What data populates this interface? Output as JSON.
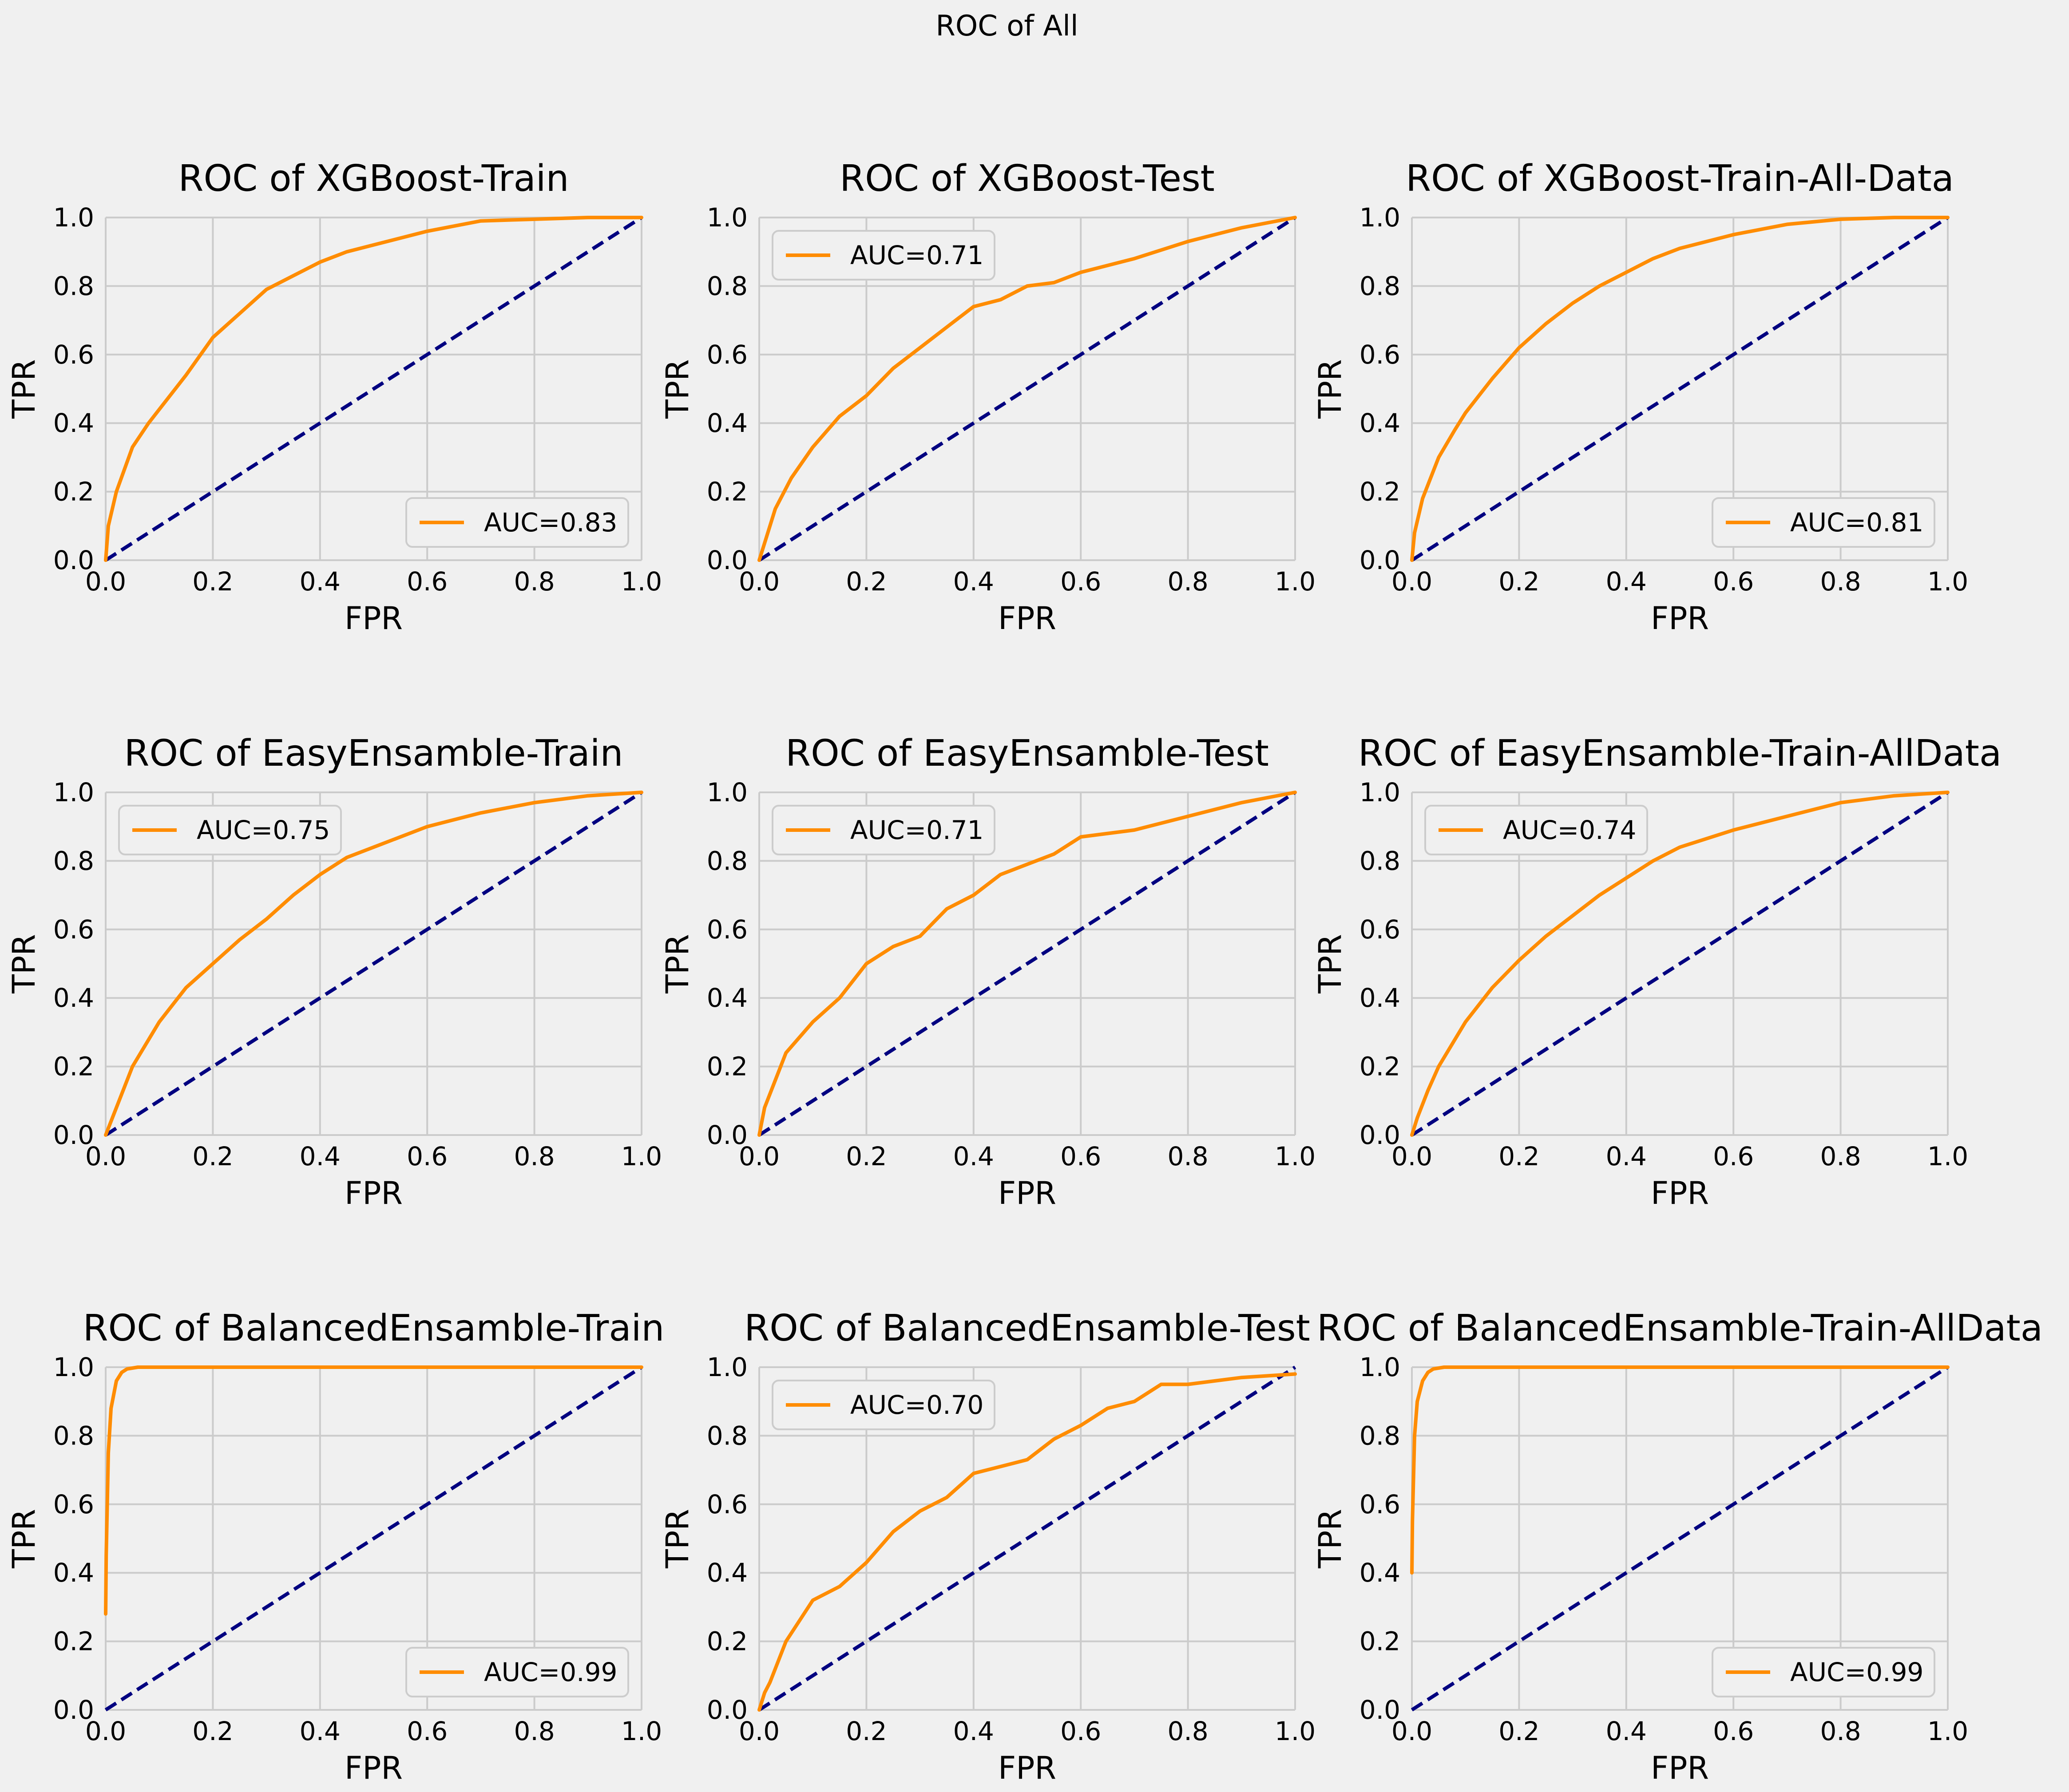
{
  "figure": {
    "suptitle": "ROC of All",
    "colors": {
      "background": "#f0f0f0",
      "grid": "#cbcbcb",
      "roc_line": "#ff8c00",
      "diagonal": "#000080",
      "legend_bg": "#f0f0f0",
      "legend_edge": "#cccccc"
    }
  },
  "chart_data": [
    {
      "type": "line",
      "title": "ROC of XGBoost-Train",
      "xlabel": "FPR",
      "ylabel": "TPR",
      "xlim": [
        0,
        1
      ],
      "ylim": [
        0,
        1
      ],
      "grid": true,
      "legend": "lower-right",
      "xticks": [
        "0.0",
        "0.2",
        "0.4",
        "0.6",
        "0.8",
        "1.0"
      ],
      "yticks": [
        "0.0",
        "0.2",
        "0.4",
        "0.6",
        "0.8",
        "1.0"
      ],
      "series": [
        {
          "name": "AUC=0.83",
          "x": [
            0,
            0.005,
            0.02,
            0.05,
            0.08,
            0.1,
            0.15,
            0.2,
            0.25,
            0.3,
            0.35,
            0.4,
            0.45,
            0.5,
            0.6,
            0.7,
            0.8,
            0.9,
            1.0
          ],
          "y": [
            0,
            0.1,
            0.2,
            0.33,
            0.4,
            0.44,
            0.54,
            0.65,
            0.72,
            0.79,
            0.83,
            0.87,
            0.9,
            0.92,
            0.96,
            0.99,
            0.995,
            1.0,
            1.0
          ]
        }
      ]
    },
    {
      "type": "line",
      "title": "ROC of XGBoost-Test",
      "xlabel": "FPR",
      "ylabel": "TPR",
      "xlim": [
        0,
        1
      ],
      "ylim": [
        0,
        1
      ],
      "grid": true,
      "legend": "upper-left",
      "xticks": [
        "0.0",
        "0.2",
        "0.4",
        "0.6",
        "0.8",
        "1.0"
      ],
      "yticks": [
        "0.0",
        "0.2",
        "0.4",
        "0.6",
        "0.8",
        "1.0"
      ],
      "series": [
        {
          "name": "AUC=0.71",
          "x": [
            0,
            0.01,
            0.03,
            0.06,
            0.1,
            0.15,
            0.2,
            0.25,
            0.3,
            0.35,
            0.4,
            0.45,
            0.5,
            0.55,
            0.6,
            0.7,
            0.8,
            0.9,
            1.0
          ],
          "y": [
            0,
            0.05,
            0.15,
            0.24,
            0.33,
            0.42,
            0.48,
            0.56,
            0.62,
            0.68,
            0.74,
            0.76,
            0.8,
            0.81,
            0.84,
            0.88,
            0.93,
            0.97,
            1.0
          ]
        }
      ]
    },
    {
      "type": "line",
      "title": "ROC of XGBoost-Train-All-Data",
      "xlabel": "FPR",
      "ylabel": "TPR",
      "xlim": [
        0,
        1
      ],
      "ylim": [
        0,
        1
      ],
      "grid": true,
      "legend": "lower-right",
      "xticks": [
        "0.0",
        "0.2",
        "0.4",
        "0.6",
        "0.8",
        "1.0"
      ],
      "yticks": [
        "0.0",
        "0.2",
        "0.4",
        "0.6",
        "0.8",
        "1.0"
      ],
      "series": [
        {
          "name": "AUC=0.81",
          "x": [
            0,
            0.005,
            0.02,
            0.05,
            0.08,
            0.1,
            0.15,
            0.2,
            0.25,
            0.3,
            0.35,
            0.4,
            0.45,
            0.5,
            0.6,
            0.7,
            0.8,
            0.9,
            1.0
          ],
          "y": [
            0,
            0.08,
            0.18,
            0.3,
            0.38,
            0.43,
            0.53,
            0.62,
            0.69,
            0.75,
            0.8,
            0.84,
            0.88,
            0.91,
            0.95,
            0.98,
            0.995,
            1.0,
            1.0
          ]
        }
      ]
    },
    {
      "type": "line",
      "title": "ROC of EasyEnsamble-Train",
      "xlabel": "FPR",
      "ylabel": "TPR",
      "xlim": [
        0,
        1
      ],
      "ylim": [
        0,
        1
      ],
      "grid": true,
      "legend": "upper-left",
      "xticks": [
        "0.0",
        "0.2",
        "0.4",
        "0.6",
        "0.8",
        "1.0"
      ],
      "yticks": [
        "0.0",
        "0.2",
        "0.4",
        "0.6",
        "0.8",
        "1.0"
      ],
      "series": [
        {
          "name": "AUC=0.75",
          "x": [
            0,
            0.01,
            0.03,
            0.05,
            0.1,
            0.15,
            0.2,
            0.25,
            0.3,
            0.35,
            0.4,
            0.45,
            0.5,
            0.6,
            0.7,
            0.8,
            0.9,
            1.0
          ],
          "y": [
            0,
            0.04,
            0.12,
            0.2,
            0.33,
            0.43,
            0.5,
            0.57,
            0.63,
            0.7,
            0.76,
            0.81,
            0.84,
            0.9,
            0.94,
            0.97,
            0.99,
            1.0
          ]
        }
      ]
    },
    {
      "type": "line",
      "title": "ROC of EasyEnsamble-Test",
      "xlabel": "FPR",
      "ylabel": "TPR",
      "xlim": [
        0,
        1
      ],
      "ylim": [
        0,
        1
      ],
      "grid": true,
      "legend": "upper-left",
      "xticks": [
        "0.0",
        "0.2",
        "0.4",
        "0.6",
        "0.8",
        "1.0"
      ],
      "yticks": [
        "0.0",
        "0.2",
        "0.4",
        "0.6",
        "0.8",
        "1.0"
      ],
      "series": [
        {
          "name": "AUC=0.71",
          "x": [
            0,
            0.01,
            0.03,
            0.05,
            0.1,
            0.15,
            0.2,
            0.25,
            0.3,
            0.35,
            0.4,
            0.45,
            0.5,
            0.55,
            0.6,
            0.7,
            0.8,
            0.9,
            1.0
          ],
          "y": [
            0,
            0.08,
            0.16,
            0.24,
            0.33,
            0.4,
            0.5,
            0.55,
            0.58,
            0.66,
            0.7,
            0.76,
            0.79,
            0.82,
            0.87,
            0.89,
            0.93,
            0.97,
            1.0
          ]
        }
      ]
    },
    {
      "type": "line",
      "title": "ROC of EasyEnsamble-Train-AllData",
      "xlabel": "FPR",
      "ylabel": "TPR",
      "xlim": [
        0,
        1
      ],
      "ylim": [
        0,
        1
      ],
      "grid": true,
      "legend": "upper-left",
      "xticks": [
        "0.0",
        "0.2",
        "0.4",
        "0.6",
        "0.8",
        "1.0"
      ],
      "yticks": [
        "0.0",
        "0.2",
        "0.4",
        "0.6",
        "0.8",
        "1.0"
      ],
      "series": [
        {
          "name": "AUC=0.74",
          "x": [
            0,
            0.01,
            0.03,
            0.05,
            0.1,
            0.15,
            0.2,
            0.25,
            0.3,
            0.35,
            0.4,
            0.45,
            0.5,
            0.6,
            0.7,
            0.8,
            0.9,
            1.0
          ],
          "y": [
            0,
            0.05,
            0.13,
            0.2,
            0.33,
            0.43,
            0.51,
            0.58,
            0.64,
            0.7,
            0.75,
            0.8,
            0.84,
            0.89,
            0.93,
            0.97,
            0.99,
            1.0
          ]
        }
      ]
    },
    {
      "type": "line",
      "title": "ROC of BalancedEnsamble-Train",
      "xlabel": "FPR",
      "ylabel": "TPR",
      "xlim": [
        0,
        1
      ],
      "ylim": [
        0,
        1
      ],
      "grid": true,
      "legend": "lower-right",
      "xticks": [
        "0.0",
        "0.2",
        "0.4",
        "0.6",
        "0.8",
        "1.0"
      ],
      "yticks": [
        "0.0",
        "0.2",
        "0.4",
        "0.6",
        "0.8",
        "1.0"
      ],
      "series": [
        {
          "name": "AUC=0.99",
          "x": [
            0,
            0.001,
            0.005,
            0.01,
            0.02,
            0.03,
            0.04,
            0.06,
            0.1,
            1.0
          ],
          "y": [
            0.28,
            0.45,
            0.75,
            0.88,
            0.96,
            0.985,
            0.995,
            1.0,
            1.0,
            1.0
          ]
        }
      ]
    },
    {
      "type": "line",
      "title": "ROC of BalancedEnsamble-Test",
      "xlabel": "FPR",
      "ylabel": "TPR",
      "xlim": [
        0,
        1
      ],
      "ylim": [
        0,
        1
      ],
      "grid": true,
      "legend": "upper-left",
      "xticks": [
        "0.0",
        "0.2",
        "0.4",
        "0.6",
        "0.8",
        "1.0"
      ],
      "yticks": [
        "0.0",
        "0.2",
        "0.4",
        "0.6",
        "0.8",
        "1.0"
      ],
      "series": [
        {
          "name": "AUC=0.70",
          "x": [
            0,
            0.01,
            0.02,
            0.05,
            0.1,
            0.15,
            0.2,
            0.25,
            0.3,
            0.35,
            0.4,
            0.45,
            0.5,
            0.55,
            0.6,
            0.65,
            0.7,
            0.75,
            0.8,
            0.9,
            1.0
          ],
          "y": [
            0,
            0.05,
            0.08,
            0.2,
            0.32,
            0.36,
            0.43,
            0.52,
            0.58,
            0.62,
            0.69,
            0.71,
            0.73,
            0.79,
            0.83,
            0.88,
            0.9,
            0.95,
            0.95,
            0.97,
            0.98
          ]
        }
      ]
    },
    {
      "type": "line",
      "title": "ROC of BalancedEnsamble-Train-AllData",
      "xlabel": "FPR",
      "ylabel": "TPR",
      "xlim": [
        0,
        1
      ],
      "ylim": [
        0,
        1
      ],
      "grid": true,
      "legend": "lower-right",
      "xticks": [
        "0.0",
        "0.2",
        "0.4",
        "0.6",
        "0.8",
        "1.0"
      ],
      "yticks": [
        "0.0",
        "0.2",
        "0.4",
        "0.6",
        "0.8",
        "1.0"
      ],
      "series": [
        {
          "name": "AUC=0.99",
          "x": [
            0,
            0.001,
            0.005,
            0.01,
            0.02,
            0.03,
            0.04,
            0.06,
            0.1,
            1.0
          ],
          "y": [
            0.4,
            0.55,
            0.8,
            0.9,
            0.96,
            0.985,
            0.995,
            1.0,
            1.0,
            1.0
          ]
        }
      ]
    }
  ]
}
